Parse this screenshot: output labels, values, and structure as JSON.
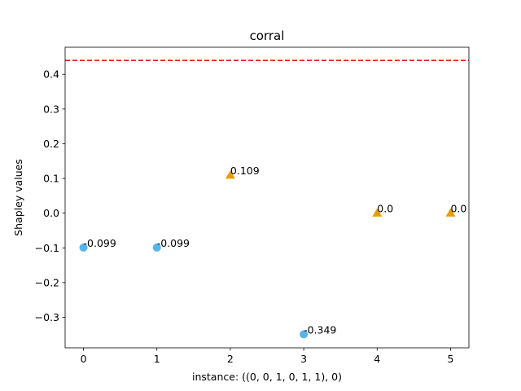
{
  "chart_data": {
    "type": "scatter",
    "title": "corral",
    "xlabel": "instance: ((0, 0, 1, 0, 1, 1), 0)",
    "ylabel": "Shapley values",
    "xlim": [
      -0.25,
      5.25
    ],
    "ylim": [
      -0.388,
      0.478
    ],
    "xticks": [
      0,
      1,
      2,
      3,
      4,
      5
    ],
    "yticks": [
      -0.3,
      -0.2,
      -0.1,
      0.0,
      0.1,
      0.2,
      0.3,
      0.4
    ],
    "ytick_labels": [
      "−0.3",
      "−0.2",
      "−0.1",
      "0.0",
      "0.1",
      "0.2",
      "0.3",
      "0.4"
    ],
    "grid": false,
    "reference_line": {
      "y": 0.44,
      "color": "#e41a1c",
      "style": "dashed"
    },
    "points": [
      {
        "x": 0,
        "y": -0.099,
        "label": "-0.099",
        "marker": "circle",
        "color": "#56b4e9"
      },
      {
        "x": 1,
        "y": -0.099,
        "label": "-0.099",
        "marker": "circle",
        "color": "#56b4e9"
      },
      {
        "x": 2,
        "y": 0.109,
        "label": "0.109",
        "marker": "triangle",
        "color": "#e69f00"
      },
      {
        "x": 3,
        "y": -0.349,
        "label": "-0.349",
        "marker": "circle",
        "color": "#56b4e9"
      },
      {
        "x": 4,
        "y": 0.0,
        "label": "0.0",
        "marker": "triangle",
        "color": "#e69f00"
      },
      {
        "x": 5,
        "y": 0.0,
        "label": "0.0",
        "marker": "triangle",
        "color": "#e69f00"
      }
    ]
  }
}
